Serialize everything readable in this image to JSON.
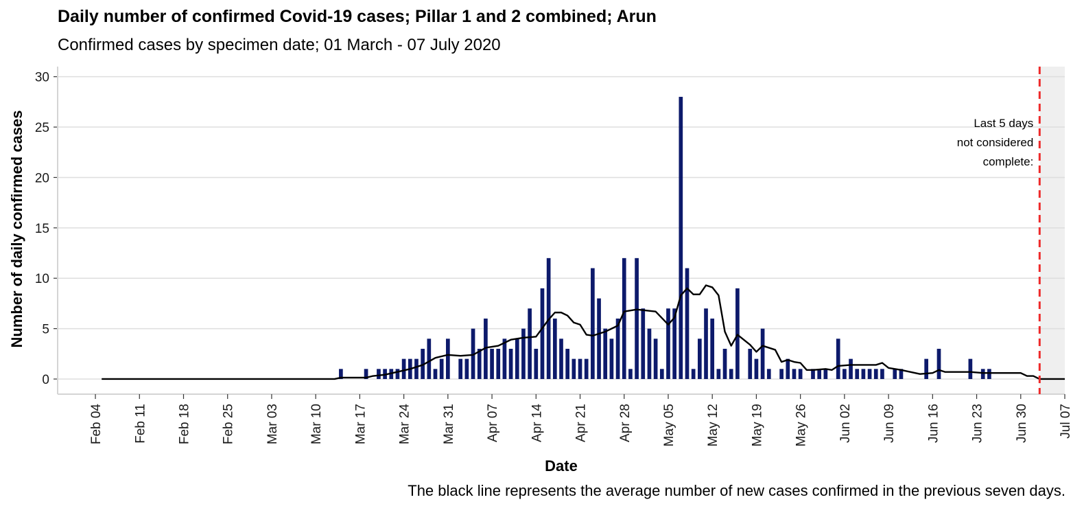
{
  "title": "Daily number of confirmed Covid-19 cases; Pillar 1 and 2 combined; Arun",
  "subtitle": "Confirmed cases by specimen date; 01 March - 07 July 2020",
  "caption": "The black line represents the average number of new cases confirmed in the previous seven days.",
  "chart_data": {
    "type": "bar",
    "title": "Daily number of confirmed Covid-19 cases; Pillar 1 and 2 combined; Arun",
    "subtitle": "Confirmed cases by specimen date; 01 March - 07 July 2020",
    "xlabel": "Date",
    "ylabel": "Number of daily confirmed cases",
    "x_range": [
      "2020-01-29",
      "2020-07-07"
    ],
    "ylim": [
      -1.5,
      31
    ],
    "yticks": [
      0,
      5,
      10,
      15,
      20,
      25,
      30
    ],
    "xticks": [
      {
        "date": "2020-02-04",
        "label": "Feb 04"
      },
      {
        "date": "2020-02-11",
        "label": "Feb 11"
      },
      {
        "date": "2020-02-18",
        "label": "Feb 18"
      },
      {
        "date": "2020-02-25",
        "label": "Feb 25"
      },
      {
        "date": "2020-03-03",
        "label": "Mar 03"
      },
      {
        "date": "2020-03-10",
        "label": "Mar 10"
      },
      {
        "date": "2020-03-17",
        "label": "Mar 17"
      },
      {
        "date": "2020-03-24",
        "label": "Mar 24"
      },
      {
        "date": "2020-03-31",
        "label": "Mar 31"
      },
      {
        "date": "2020-04-07",
        "label": "Apr 07"
      },
      {
        "date": "2020-04-14",
        "label": "Apr 14"
      },
      {
        "date": "2020-04-21",
        "label": "Apr 21"
      },
      {
        "date": "2020-04-28",
        "label": "Apr 28"
      },
      {
        "date": "2020-05-05",
        "label": "May 05"
      },
      {
        "date": "2020-05-12",
        "label": "May 12"
      },
      {
        "date": "2020-05-19",
        "label": "May 19"
      },
      {
        "date": "2020-05-26",
        "label": "May 26"
      },
      {
        "date": "2020-06-02",
        "label": "Jun 02"
      },
      {
        "date": "2020-06-09",
        "label": "Jun 09"
      },
      {
        "date": "2020-06-16",
        "label": "Jun 16"
      },
      {
        "date": "2020-06-23",
        "label": "Jun 23"
      },
      {
        "date": "2020-06-30",
        "label": "Jun 30"
      },
      {
        "date": "2020-07-07",
        "label": "Jul 07"
      }
    ],
    "grid": true,
    "bar_color": "#0d1a6b",
    "line_color": "#000000",
    "cutoff_line_color": "#ee2a2a",
    "incomplete_shade_color": "#efefef",
    "incomplete_start": "2020-07-03",
    "annotation_lines": [
      "Last 5 days",
      "not considered",
      "complete:"
    ],
    "bars": [
      {
        "date": "2020-03-14",
        "value": 1
      },
      {
        "date": "2020-03-18",
        "value": 1
      },
      {
        "date": "2020-03-20",
        "value": 1
      },
      {
        "date": "2020-03-21",
        "value": 1
      },
      {
        "date": "2020-03-22",
        "value": 1
      },
      {
        "date": "2020-03-23",
        "value": 1
      },
      {
        "date": "2020-03-24",
        "value": 2
      },
      {
        "date": "2020-03-25",
        "value": 2
      },
      {
        "date": "2020-03-26",
        "value": 2
      },
      {
        "date": "2020-03-27",
        "value": 3
      },
      {
        "date": "2020-03-28",
        "value": 4
      },
      {
        "date": "2020-03-29",
        "value": 1
      },
      {
        "date": "2020-03-30",
        "value": 2
      },
      {
        "date": "2020-03-31",
        "value": 4
      },
      {
        "date": "2020-04-02",
        "value": 2
      },
      {
        "date": "2020-04-03",
        "value": 2
      },
      {
        "date": "2020-04-04",
        "value": 5
      },
      {
        "date": "2020-04-05",
        "value": 3
      },
      {
        "date": "2020-04-06",
        "value": 6
      },
      {
        "date": "2020-04-07",
        "value": 3
      },
      {
        "date": "2020-04-08",
        "value": 3
      },
      {
        "date": "2020-04-09",
        "value": 4
      },
      {
        "date": "2020-04-10",
        "value": 3
      },
      {
        "date": "2020-04-11",
        "value": 4
      },
      {
        "date": "2020-04-12",
        "value": 5
      },
      {
        "date": "2020-04-13",
        "value": 7
      },
      {
        "date": "2020-04-14",
        "value": 3
      },
      {
        "date": "2020-04-15",
        "value": 9
      },
      {
        "date": "2020-04-16",
        "value": 12
      },
      {
        "date": "2020-04-17",
        "value": 6
      },
      {
        "date": "2020-04-18",
        "value": 4
      },
      {
        "date": "2020-04-19",
        "value": 3
      },
      {
        "date": "2020-04-20",
        "value": 2
      },
      {
        "date": "2020-04-21",
        "value": 2
      },
      {
        "date": "2020-04-22",
        "value": 2
      },
      {
        "date": "2020-04-23",
        "value": 11
      },
      {
        "date": "2020-04-24",
        "value": 8
      },
      {
        "date": "2020-04-25",
        "value": 5
      },
      {
        "date": "2020-04-26",
        "value": 4
      },
      {
        "date": "2020-04-27",
        "value": 6
      },
      {
        "date": "2020-04-28",
        "value": 12
      },
      {
        "date": "2020-04-29",
        "value": 1
      },
      {
        "date": "2020-04-30",
        "value": 12
      },
      {
        "date": "2020-05-01",
        "value": 7
      },
      {
        "date": "2020-05-02",
        "value": 5
      },
      {
        "date": "2020-05-03",
        "value": 4
      },
      {
        "date": "2020-05-04",
        "value": 1
      },
      {
        "date": "2020-05-05",
        "value": 7
      },
      {
        "date": "2020-05-06",
        "value": 7
      },
      {
        "date": "2020-05-07",
        "value": 28
      },
      {
        "date": "2020-05-08",
        "value": 11
      },
      {
        "date": "2020-05-09",
        "value": 1
      },
      {
        "date": "2020-05-10",
        "value": 4
      },
      {
        "date": "2020-05-11",
        "value": 7
      },
      {
        "date": "2020-05-12",
        "value": 6
      },
      {
        "date": "2020-05-13",
        "value": 1
      },
      {
        "date": "2020-05-14",
        "value": 3
      },
      {
        "date": "2020-05-15",
        "value": 1
      },
      {
        "date": "2020-05-16",
        "value": 9
      },
      {
        "date": "2020-05-18",
        "value": 3
      },
      {
        "date": "2020-05-19",
        "value": 2
      },
      {
        "date": "2020-05-20",
        "value": 5
      },
      {
        "date": "2020-05-21",
        "value": 1
      },
      {
        "date": "2020-05-23",
        "value": 1
      },
      {
        "date": "2020-05-24",
        "value": 2
      },
      {
        "date": "2020-05-25",
        "value": 1
      },
      {
        "date": "2020-05-26",
        "value": 1
      },
      {
        "date": "2020-05-28",
        "value": 1
      },
      {
        "date": "2020-05-29",
        "value": 1
      },
      {
        "date": "2020-05-30",
        "value": 1
      },
      {
        "date": "2020-06-01",
        "value": 4
      },
      {
        "date": "2020-06-02",
        "value": 1
      },
      {
        "date": "2020-06-03",
        "value": 2
      },
      {
        "date": "2020-06-04",
        "value": 1
      },
      {
        "date": "2020-06-05",
        "value": 1
      },
      {
        "date": "2020-06-06",
        "value": 1
      },
      {
        "date": "2020-06-07",
        "value": 1
      },
      {
        "date": "2020-06-08",
        "value": 1
      },
      {
        "date": "2020-06-10",
        "value": 1
      },
      {
        "date": "2020-06-11",
        "value": 1
      },
      {
        "date": "2020-06-15",
        "value": 2
      },
      {
        "date": "2020-06-17",
        "value": 3
      },
      {
        "date": "2020-06-22",
        "value": 2
      },
      {
        "date": "2020-06-24",
        "value": 1
      },
      {
        "date": "2020-06-25",
        "value": 1
      }
    ],
    "average": [
      {
        "date": "2020-02-05",
        "value": 0
      },
      {
        "date": "2020-03-13",
        "value": 0
      },
      {
        "date": "2020-03-14",
        "value": 0.14
      },
      {
        "date": "2020-03-18",
        "value": 0.14
      },
      {
        "date": "2020-03-19",
        "value": 0.29
      },
      {
        "date": "2020-03-21",
        "value": 0.43
      },
      {
        "date": "2020-03-23",
        "value": 0.71
      },
      {
        "date": "2020-03-25",
        "value": 1.0
      },
      {
        "date": "2020-03-27",
        "value": 1.4
      },
      {
        "date": "2020-03-29",
        "value": 2.1
      },
      {
        "date": "2020-03-31",
        "value": 2.4
      },
      {
        "date": "2020-04-02",
        "value": 2.3
      },
      {
        "date": "2020-04-04",
        "value": 2.4
      },
      {
        "date": "2020-04-06",
        "value": 3.1
      },
      {
        "date": "2020-04-08",
        "value": 3.3
      },
      {
        "date": "2020-04-10",
        "value": 3.9
      },
      {
        "date": "2020-04-12",
        "value": 4.1
      },
      {
        "date": "2020-04-14",
        "value": 4.2
      },
      {
        "date": "2020-04-16",
        "value": 5.9
      },
      {
        "date": "2020-04-17",
        "value": 6.6
      },
      {
        "date": "2020-04-18",
        "value": 6.6
      },
      {
        "date": "2020-04-19",
        "value": 6.3
      },
      {
        "date": "2020-04-20",
        "value": 5.6
      },
      {
        "date": "2020-04-21",
        "value": 5.4
      },
      {
        "date": "2020-04-22",
        "value": 4.4
      },
      {
        "date": "2020-04-23",
        "value": 4.3
      },
      {
        "date": "2020-04-25",
        "value": 4.7
      },
      {
        "date": "2020-04-27",
        "value": 5.3
      },
      {
        "date": "2020-04-28",
        "value": 6.7
      },
      {
        "date": "2020-04-30",
        "value": 6.9
      },
      {
        "date": "2020-05-03",
        "value": 6.7
      },
      {
        "date": "2020-05-05",
        "value": 5.4
      },
      {
        "date": "2020-05-06",
        "value": 6.1
      },
      {
        "date": "2020-05-07",
        "value": 8.3
      },
      {
        "date": "2020-05-08",
        "value": 9.0
      },
      {
        "date": "2020-05-09",
        "value": 8.4
      },
      {
        "date": "2020-05-10",
        "value": 8.4
      },
      {
        "date": "2020-05-11",
        "value": 9.3
      },
      {
        "date": "2020-05-12",
        "value": 9.1
      },
      {
        "date": "2020-05-13",
        "value": 8.3
      },
      {
        "date": "2020-05-14",
        "value": 4.7
      },
      {
        "date": "2020-05-15",
        "value": 3.3
      },
      {
        "date": "2020-05-16",
        "value": 4.4
      },
      {
        "date": "2020-05-18",
        "value": 3.4
      },
      {
        "date": "2020-05-19",
        "value": 2.7
      },
      {
        "date": "2020-05-20",
        "value": 3.3
      },
      {
        "date": "2020-05-22",
        "value": 2.9
      },
      {
        "date": "2020-05-23",
        "value": 1.7
      },
      {
        "date": "2020-05-24",
        "value": 1.9
      },
      {
        "date": "2020-05-25",
        "value": 1.7
      },
      {
        "date": "2020-05-26",
        "value": 1.6
      },
      {
        "date": "2020-05-27",
        "value": 0.9
      },
      {
        "date": "2020-05-28",
        "value": 0.9
      },
      {
        "date": "2020-05-30",
        "value": 1.0
      },
      {
        "date": "2020-05-31",
        "value": 0.9
      },
      {
        "date": "2020-06-01",
        "value": 1.3
      },
      {
        "date": "2020-06-03",
        "value": 1.4
      },
      {
        "date": "2020-06-07",
        "value": 1.4
      },
      {
        "date": "2020-06-08",
        "value": 1.6
      },
      {
        "date": "2020-06-09",
        "value": 1.1
      },
      {
        "date": "2020-06-11",
        "value": 0.9
      },
      {
        "date": "2020-06-14",
        "value": 0.5
      },
      {
        "date": "2020-06-16",
        "value": 0.6
      },
      {
        "date": "2020-06-17",
        "value": 0.9
      },
      {
        "date": "2020-06-18",
        "value": 0.7
      },
      {
        "date": "2020-06-22",
        "value": 0.7
      },
      {
        "date": "2020-06-24",
        "value": 0.6
      },
      {
        "date": "2020-06-30",
        "value": 0.6
      },
      {
        "date": "2020-07-01",
        "value": 0.3
      },
      {
        "date": "2020-07-02",
        "value": 0.3
      },
      {
        "date": "2020-07-03",
        "value": 0
      },
      {
        "date": "2020-07-07",
        "value": 0
      }
    ]
  }
}
